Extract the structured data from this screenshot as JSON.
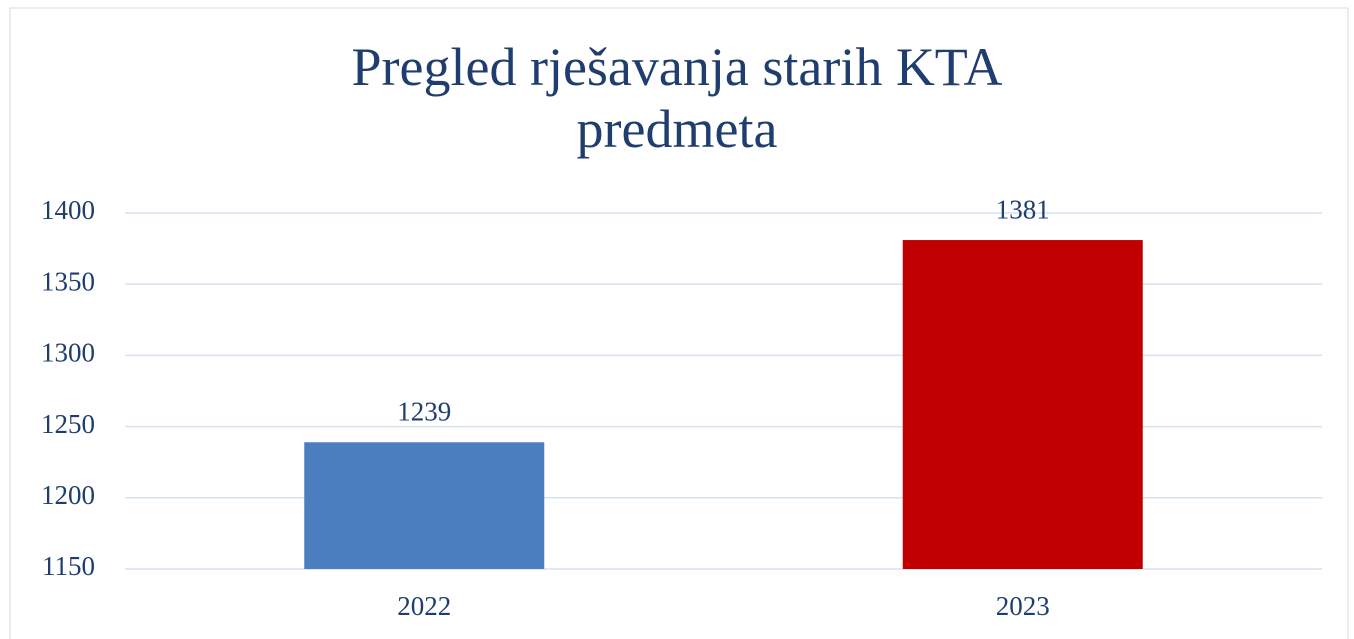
{
  "chart_data": {
    "type": "bar",
    "title": "Pregled rješavanja starih KTA predmeta",
    "categories": [
      "2022",
      "2023"
    ],
    "values": [
      1239,
      1381
    ],
    "colors": [
      "#4a7ebf",
      "#c00000"
    ],
    "ylim": [
      1150,
      1400
    ],
    "yticks": [
      1150,
      1200,
      1250,
      1300,
      1350,
      1400
    ],
    "grid": true
  }
}
